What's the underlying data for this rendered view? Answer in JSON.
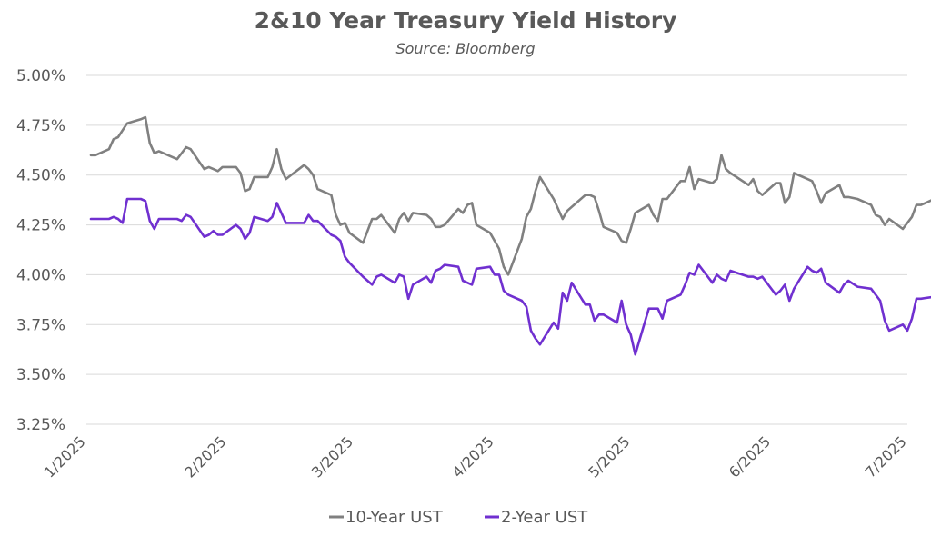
{
  "chart_data": {
    "type": "line",
    "title": "2&10 Year Treasury Yield History",
    "subtitle": "Source: Bloomberg",
    "xlabel": "",
    "ylabel": "",
    "x_start": "2025-01-01",
    "x_end": "2025-07-01",
    "x_tick_labels": [
      "1/2025",
      "2/2025",
      "3/2025",
      "4/2025",
      "5/2025",
      "6/2025",
      "7/2025"
    ],
    "x_tick_dates": [
      "2025-01-01",
      "2025-02-01",
      "2025-03-01",
      "2025-04-01",
      "2025-05-01",
      "2025-06-01",
      "2025-07-01"
    ],
    "y_ticks": [
      3.25,
      3.5,
      3.75,
      4.0,
      4.25,
      4.5,
      4.75,
      5.0
    ],
    "y_tick_labels": [
      "3.25%",
      "3.50%",
      "3.75%",
      "4.00%",
      "4.25%",
      "4.50%",
      "4.75%",
      "5.00%"
    ],
    "ylim": [
      3.25,
      5.0
    ],
    "grid": "horizontal",
    "legend_position": "bottom",
    "series": [
      {
        "name": "10-Year UST",
        "color": "#808080",
        "points": [
          [
            "2025-01-02",
            4.6
          ],
          [
            "2025-01-03",
            4.6
          ],
          [
            "2025-01-06",
            4.63
          ],
          [
            "2025-01-07",
            4.68
          ],
          [
            "2025-01-08",
            4.69
          ],
          [
            "2025-01-10",
            4.76
          ],
          [
            "2025-01-13",
            4.78
          ],
          [
            "2025-01-14",
            4.79
          ],
          [
            "2025-01-15",
            4.66
          ],
          [
            "2025-01-16",
            4.61
          ],
          [
            "2025-01-17",
            4.62
          ],
          [
            "2025-01-21",
            4.58
          ],
          [
            "2025-01-22",
            4.61
          ],
          [
            "2025-01-23",
            4.64
          ],
          [
            "2025-01-24",
            4.63
          ],
          [
            "2025-01-27",
            4.53
          ],
          [
            "2025-01-28",
            4.54
          ],
          [
            "2025-01-29",
            4.53
          ],
          [
            "2025-01-30",
            4.52
          ],
          [
            "2025-01-31",
            4.54
          ],
          [
            "2025-02-03",
            4.54
          ],
          [
            "2025-02-04",
            4.51
          ],
          [
            "2025-02-05",
            4.42
          ],
          [
            "2025-02-06",
            4.43
          ],
          [
            "2025-02-07",
            4.49
          ],
          [
            "2025-02-10",
            4.49
          ],
          [
            "2025-02-11",
            4.54
          ],
          [
            "2025-02-12",
            4.63
          ],
          [
            "2025-02-13",
            4.53
          ],
          [
            "2025-02-14",
            4.48
          ],
          [
            "2025-02-18",
            4.55
          ],
          [
            "2025-02-19",
            4.53
          ],
          [
            "2025-02-20",
            4.5
          ],
          [
            "2025-02-21",
            4.43
          ],
          [
            "2025-02-24",
            4.4
          ],
          [
            "2025-02-25",
            4.3
          ],
          [
            "2025-02-26",
            4.25
          ],
          [
            "2025-02-27",
            4.26
          ],
          [
            "2025-02-28",
            4.21
          ],
          [
            "2025-03-03",
            4.16
          ],
          [
            "2025-03-04",
            4.22
          ],
          [
            "2025-03-05",
            4.28
          ],
          [
            "2025-03-06",
            4.28
          ],
          [
            "2025-03-07",
            4.3
          ],
          [
            "2025-03-10",
            4.21
          ],
          [
            "2025-03-11",
            4.28
          ],
          [
            "2025-03-12",
            4.31
          ],
          [
            "2025-03-13",
            4.27
          ],
          [
            "2025-03-14",
            4.31
          ],
          [
            "2025-03-17",
            4.3
          ],
          [
            "2025-03-18",
            4.28
          ],
          [
            "2025-03-19",
            4.24
          ],
          [
            "2025-03-20",
            4.24
          ],
          [
            "2025-03-21",
            4.25
          ],
          [
            "2025-03-24",
            4.33
          ],
          [
            "2025-03-25",
            4.31
          ],
          [
            "2025-03-26",
            4.35
          ],
          [
            "2025-03-27",
            4.36
          ],
          [
            "2025-03-28",
            4.25
          ],
          [
            "2025-03-31",
            4.21
          ],
          [
            "2025-04-01",
            4.17
          ],
          [
            "2025-04-02",
            4.13
          ],
          [
            "2025-04-03",
            4.04
          ],
          [
            "2025-04-04",
            4.0
          ],
          [
            "2025-04-07",
            4.18
          ],
          [
            "2025-04-08",
            4.29
          ],
          [
            "2025-04-09",
            4.33
          ],
          [
            "2025-04-10",
            4.42
          ],
          [
            "2025-04-11",
            4.49
          ],
          [
            "2025-04-14",
            4.38
          ],
          [
            "2025-04-15",
            4.33
          ],
          [
            "2025-04-16",
            4.28
          ],
          [
            "2025-04-17",
            4.32
          ],
          [
            "2025-04-21",
            4.4
          ],
          [
            "2025-04-22",
            4.4
          ],
          [
            "2025-04-23",
            4.39
          ],
          [
            "2025-04-24",
            4.32
          ],
          [
            "2025-04-25",
            4.24
          ],
          [
            "2025-04-28",
            4.21
          ],
          [
            "2025-04-29",
            4.17
          ],
          [
            "2025-04-30",
            4.16
          ],
          [
            "2025-05-01",
            4.23
          ],
          [
            "2025-05-02",
            4.31
          ],
          [
            "2025-05-05",
            4.35
          ],
          [
            "2025-05-06",
            4.3
          ],
          [
            "2025-05-07",
            4.27
          ],
          [
            "2025-05-08",
            4.38
          ],
          [
            "2025-05-09",
            4.38
          ],
          [
            "2025-05-12",
            4.47
          ],
          [
            "2025-05-13",
            4.47
          ],
          [
            "2025-05-14",
            4.54
          ],
          [
            "2025-05-15",
            4.43
          ],
          [
            "2025-05-16",
            4.48
          ],
          [
            "2025-05-19",
            4.46
          ],
          [
            "2025-05-20",
            4.48
          ],
          [
            "2025-05-21",
            4.6
          ],
          [
            "2025-05-22",
            4.53
          ],
          [
            "2025-05-23",
            4.51
          ],
          [
            "2025-05-27",
            4.45
          ],
          [
            "2025-05-28",
            4.48
          ],
          [
            "2025-05-29",
            4.42
          ],
          [
            "2025-05-30",
            4.4
          ],
          [
            "2025-06-02",
            4.46
          ],
          [
            "2025-06-03",
            4.46
          ],
          [
            "2025-06-04",
            4.36
          ],
          [
            "2025-06-05",
            4.39
          ],
          [
            "2025-06-06",
            4.51
          ],
          [
            "2025-06-09",
            4.48
          ],
          [
            "2025-06-10",
            4.47
          ],
          [
            "2025-06-11",
            4.42
          ],
          [
            "2025-06-12",
            4.36
          ],
          [
            "2025-06-13",
            4.41
          ],
          [
            "2025-06-16",
            4.45
          ],
          [
            "2025-06-17",
            4.39
          ],
          [
            "2025-06-18",
            4.39
          ],
          [
            "2025-06-20",
            4.38
          ],
          [
            "2025-06-23",
            4.35
          ],
          [
            "2025-06-24",
            4.3
          ],
          [
            "2025-06-25",
            4.29
          ],
          [
            "2025-06-26",
            4.25
          ],
          [
            "2025-06-27",
            4.28
          ],
          [
            "2025-06-30",
            4.23
          ],
          [
            "2025-07-01",
            4.26
          ],
          [
            "2025-07-02",
            4.29
          ],
          [
            "2025-07-03",
            4.35
          ],
          [
            "2025-07-04",
            4.35
          ],
          [
            "2025-07-07",
            4.38
          ],
          [
            "2025-07-08",
            4.39
          ]
        ]
      },
      {
        "name": "2-Year UST",
        "color": "#7030D0",
        "points": [
          [
            "2025-01-02",
            4.28
          ],
          [
            "2025-01-03",
            4.28
          ],
          [
            "2025-01-06",
            4.28
          ],
          [
            "2025-01-07",
            4.29
          ],
          [
            "2025-01-08",
            4.28
          ],
          [
            "2025-01-09",
            4.26
          ],
          [
            "2025-01-10",
            4.38
          ],
          [
            "2025-01-13",
            4.38
          ],
          [
            "2025-01-14",
            4.37
          ],
          [
            "2025-01-15",
            4.27
          ],
          [
            "2025-01-16",
            4.23
          ],
          [
            "2025-01-17",
            4.28
          ],
          [
            "2025-01-21",
            4.28
          ],
          [
            "2025-01-22",
            4.27
          ],
          [
            "2025-01-23",
            4.3
          ],
          [
            "2025-01-24",
            4.29
          ],
          [
            "2025-01-27",
            4.19
          ],
          [
            "2025-01-28",
            4.2
          ],
          [
            "2025-01-29",
            4.22
          ],
          [
            "2025-01-30",
            4.2
          ],
          [
            "2025-01-31",
            4.2
          ],
          [
            "2025-02-03",
            4.25
          ],
          [
            "2025-02-04",
            4.23
          ],
          [
            "2025-02-05",
            4.18
          ],
          [
            "2025-02-06",
            4.21
          ],
          [
            "2025-02-07",
            4.29
          ],
          [
            "2025-02-10",
            4.27
          ],
          [
            "2025-02-11",
            4.29
          ],
          [
            "2025-02-12",
            4.36
          ],
          [
            "2025-02-13",
            4.31
          ],
          [
            "2025-02-14",
            4.26
          ],
          [
            "2025-02-18",
            4.26
          ],
          [
            "2025-02-19",
            4.3
          ],
          [
            "2025-02-20",
            4.27
          ],
          [
            "2025-02-21",
            4.27
          ],
          [
            "2025-02-24",
            4.2
          ],
          [
            "2025-02-25",
            4.19
          ],
          [
            "2025-02-26",
            4.17
          ],
          [
            "2025-02-27",
            4.09
          ],
          [
            "2025-02-28",
            4.06
          ],
          [
            "2025-03-03",
            3.99
          ],
          [
            "2025-03-04",
            3.97
          ],
          [
            "2025-03-05",
            3.95
          ],
          [
            "2025-03-06",
            3.99
          ],
          [
            "2025-03-07",
            4.0
          ],
          [
            "2025-03-10",
            3.96
          ],
          [
            "2025-03-11",
            4.0
          ],
          [
            "2025-03-12",
            3.99
          ],
          [
            "2025-03-13",
            3.88
          ],
          [
            "2025-03-14",
            3.95
          ],
          [
            "2025-03-17",
            3.99
          ],
          [
            "2025-03-18",
            3.96
          ],
          [
            "2025-03-19",
            4.02
          ],
          [
            "2025-03-20",
            4.03
          ],
          [
            "2025-03-21",
            4.05
          ],
          [
            "2025-03-24",
            4.04
          ],
          [
            "2025-03-25",
            3.97
          ],
          [
            "2025-03-26",
            3.96
          ],
          [
            "2025-03-27",
            3.95
          ],
          [
            "2025-03-28",
            4.03
          ],
          [
            "2025-03-31",
            4.04
          ],
          [
            "2025-04-01",
            4.0
          ],
          [
            "2025-04-02",
            4.0
          ],
          [
            "2025-04-03",
            3.92
          ],
          [
            "2025-04-04",
            3.9
          ],
          [
            "2025-04-07",
            3.87
          ],
          [
            "2025-04-08",
            3.84
          ],
          [
            "2025-04-09",
            3.72
          ],
          [
            "2025-04-10",
            3.68
          ],
          [
            "2025-04-11",
            3.65
          ],
          [
            "2025-04-14",
            3.76
          ],
          [
            "2025-04-15",
            3.73
          ],
          [
            "2025-04-16",
            3.91
          ],
          [
            "2025-04-17",
            3.87
          ],
          [
            "2025-04-18",
            3.96
          ],
          [
            "2025-04-21",
            3.85
          ],
          [
            "2025-04-22",
            3.85
          ],
          [
            "2025-04-23",
            3.77
          ],
          [
            "2025-04-24",
            3.8
          ],
          [
            "2025-04-25",
            3.8
          ],
          [
            "2025-04-28",
            3.76
          ],
          [
            "2025-04-29",
            3.87
          ],
          [
            "2025-04-30",
            3.75
          ],
          [
            "2025-05-01",
            3.7
          ],
          [
            "2025-05-02",
            3.6
          ],
          [
            "2025-05-05",
            3.83
          ],
          [
            "2025-05-06",
            3.83
          ],
          [
            "2025-05-07",
            3.83
          ],
          [
            "2025-05-08",
            3.78
          ],
          [
            "2025-05-09",
            3.87
          ],
          [
            "2025-05-12",
            3.9
          ],
          [
            "2025-05-13",
            3.95
          ],
          [
            "2025-05-14",
            4.01
          ],
          [
            "2025-05-15",
            4.0
          ],
          [
            "2025-05-16",
            4.05
          ],
          [
            "2025-05-19",
            3.96
          ],
          [
            "2025-05-20",
            4.0
          ],
          [
            "2025-05-21",
            3.98
          ],
          [
            "2025-05-22",
            3.97
          ],
          [
            "2025-05-23",
            4.02
          ],
          [
            "2025-05-27",
            3.99
          ],
          [
            "2025-05-28",
            3.99
          ],
          [
            "2025-05-29",
            3.98
          ],
          [
            "2025-05-30",
            3.99
          ],
          [
            "2025-06-02",
            3.9
          ],
          [
            "2025-06-03",
            3.92
          ],
          [
            "2025-06-04",
            3.95
          ],
          [
            "2025-06-05",
            3.87
          ],
          [
            "2025-06-06",
            3.93
          ],
          [
            "2025-06-09",
            4.04
          ],
          [
            "2025-06-10",
            4.02
          ],
          [
            "2025-06-11",
            4.01
          ],
          [
            "2025-06-12",
            4.03
          ],
          [
            "2025-06-13",
            3.96
          ],
          [
            "2025-06-16",
            3.91
          ],
          [
            "2025-06-17",
            3.95
          ],
          [
            "2025-06-18",
            3.97
          ],
          [
            "2025-06-20",
            3.94
          ],
          [
            "2025-06-23",
            3.93
          ],
          [
            "2025-06-24",
            3.9
          ],
          [
            "2025-06-25",
            3.87
          ],
          [
            "2025-06-26",
            3.77
          ],
          [
            "2025-06-27",
            3.72
          ],
          [
            "2025-06-30",
            3.75
          ],
          [
            "2025-07-01",
            3.72
          ],
          [
            "2025-07-02",
            3.78
          ],
          [
            "2025-07-03",
            3.88
          ],
          [
            "2025-07-04",
            3.88
          ],
          [
            "2025-07-07",
            3.89
          ],
          [
            "2025-07-08",
            3.9
          ]
        ]
      }
    ]
  }
}
